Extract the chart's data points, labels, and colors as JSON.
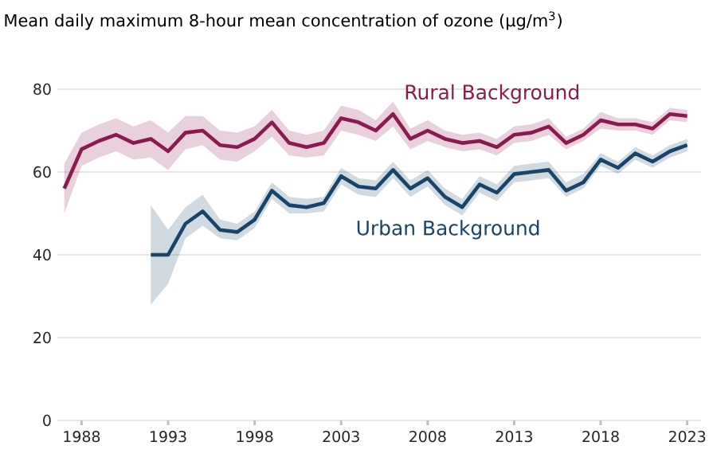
{
  "chart_data": {
    "type": "line",
    "title": "Mean daily maximum 8-hour mean concentration of ozone (μg/m$^{3}$)",
    "xlim": [
      1986.6,
      2023.8
    ],
    "xticks": [
      1988,
      1993,
      1998,
      2003,
      2008,
      2013,
      2018,
      2023
    ],
    "ylim": [
      0,
      80
    ],
    "yticks": [
      0,
      20,
      40,
      60,
      80
    ],
    "grid": "y",
    "legend": false,
    "series": [
      {
        "name": "Rural Background",
        "color": "#8b1a4f",
        "x": [
          1987,
          1988,
          1989,
          1990,
          1991,
          1992,
          1993,
          1994,
          1995,
          1996,
          1997,
          1998,
          1999,
          2000,
          2001,
          2002,
          2003,
          2004,
          2005,
          2006,
          2007,
          2008,
          2009,
          2010,
          2011,
          2012,
          2013,
          2014,
          2015,
          2016,
          2017,
          2018,
          2019,
          2020,
          2021,
          2022,
          2023
        ],
        "values": [
          56,
          65.5,
          67.5,
          69,
          67,
          68,
          65,
          69.5,
          70,
          66.5,
          66,
          68,
          72,
          67,
          66,
          67,
          73,
          72,
          70,
          74,
          68,
          70,
          68,
          67,
          67.5,
          66,
          69,
          69.5,
          71,
          67,
          69,
          72.5,
          71.5,
          71.5,
          70.5,
          74,
          73.5
        ],
        "lower": [
          50,
          61.5,
          63.5,
          65,
          63,
          63.5,
          60.5,
          65.5,
          66.5,
          63,
          62.5,
          65,
          68.5,
          64,
          63.5,
          64,
          70,
          69,
          67.5,
          71,
          65.5,
          67.5,
          66,
          65,
          65.5,
          64,
          67,
          67.5,
          69,
          65.5,
          67.5,
          70.5,
          70,
          70,
          69,
          72.5,
          72
        ],
        "upper": [
          62,
          69.5,
          71.5,
          73,
          71,
          72.5,
          69.5,
          73.5,
          73.5,
          70,
          69.5,
          71,
          75,
          70,
          69,
          70,
          76,
          75,
          72.5,
          77,
          70.5,
          72.5,
          70,
          69,
          69.5,
          68,
          71,
          71.5,
          73,
          68.5,
          70.5,
          74.5,
          73,
          73,
          72,
          75.5,
          75
        ]
      },
      {
        "name": "Urban Background",
        "color": "#17446a",
        "x": [
          1992,
          1993,
          1994,
          1995,
          1996,
          1997,
          1998,
          1999,
          2000,
          2001,
          2002,
          2003,
          2004,
          2005,
          2006,
          2007,
          2008,
          2009,
          2010,
          2011,
          2012,
          2013,
          2014,
          2015,
          2016,
          2017,
          2018,
          2019,
          2020,
          2021,
          2022,
          2023
        ],
        "values": [
          40,
          40,
          47.5,
          50.5,
          46,
          45.5,
          48.5,
          55.5,
          52,
          51.5,
          52.5,
          59,
          56.5,
          56,
          60.5,
          56,
          58.5,
          54,
          51.5,
          57,
          55,
          59.5,
          60,
          60.5,
          55.5,
          57.5,
          63,
          61,
          64.5,
          62.5,
          65,
          66.5
        ],
        "lower": [
          28,
          33,
          44,
          47,
          44,
          43.5,
          46.5,
          53.5,
          50,
          50,
          50.5,
          57,
          54.5,
          54,
          58.5,
          54,
          56.5,
          52,
          49.5,
          55,
          53,
          57.5,
          58,
          58.5,
          54,
          56,
          61.5,
          59.5,
          63,
          61,
          63.5,
          65
        ],
        "upper": [
          52,
          46,
          51.5,
          54.5,
          48.5,
          47.5,
          50.5,
          57.5,
          54,
          53.5,
          54,
          61,
          58.5,
          58,
          62.5,
          58,
          60.5,
          56,
          53.5,
          59,
          57,
          61.5,
          62,
          62.5,
          57.5,
          59.5,
          64.5,
          62.5,
          66,
          64,
          66.5,
          68
        ]
      }
    ]
  }
}
